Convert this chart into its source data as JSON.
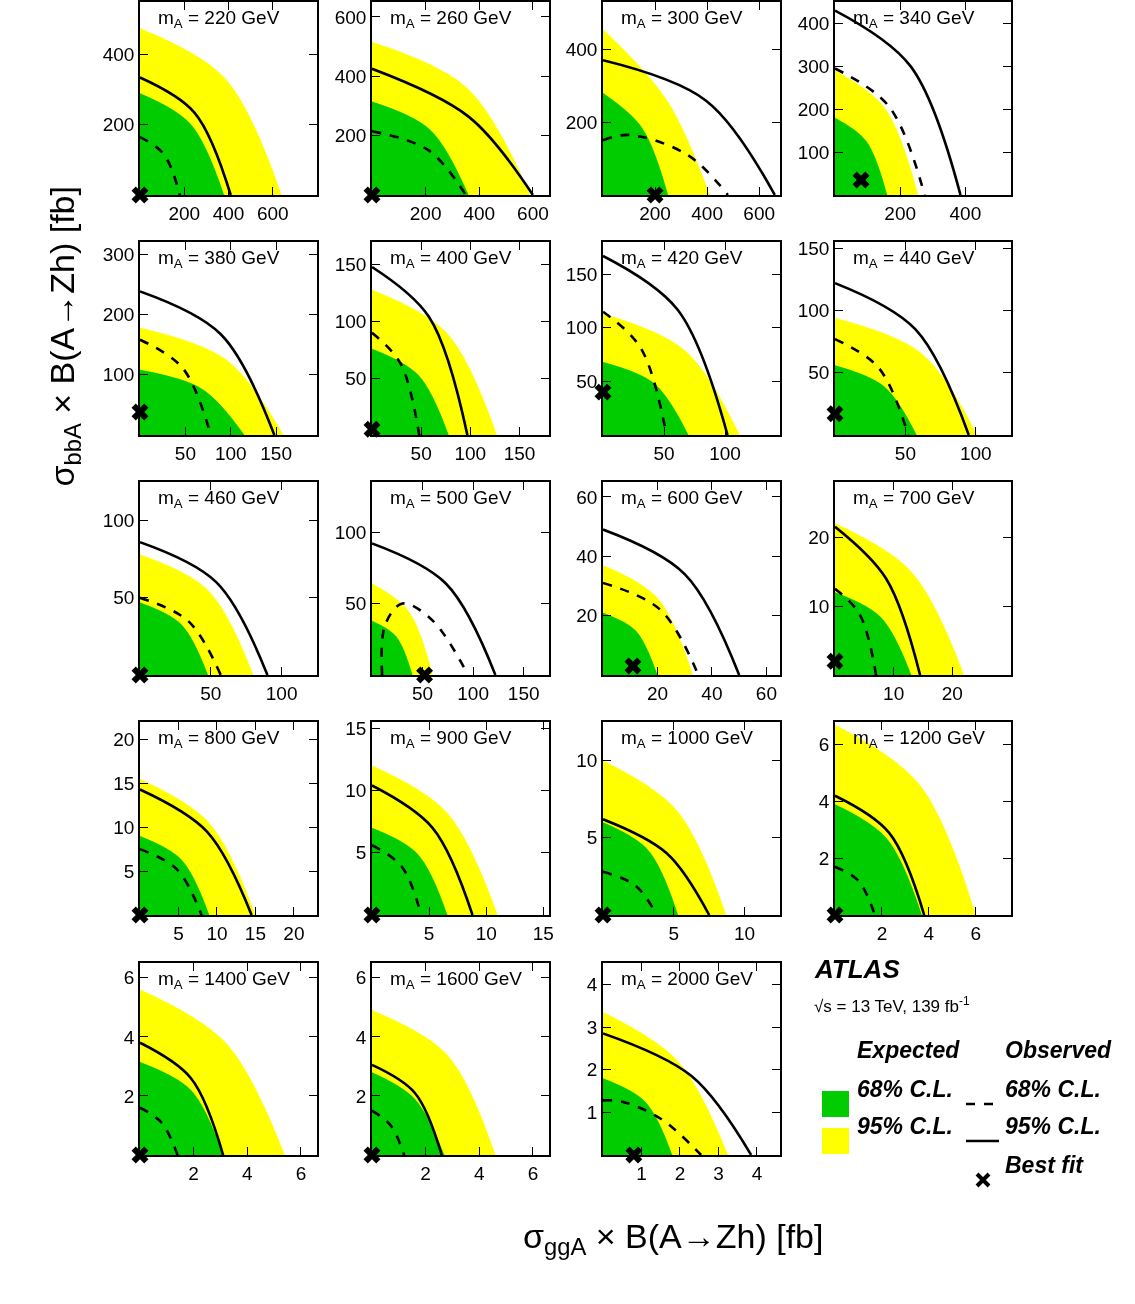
{
  "chart_data": [
    {
      "type": "area",
      "title": "m$_{A}$ = 220 GeV",
      "ylabel": "σ$_{bbA}$ × B(A→Zh) [fb]",
      "xlim": [
        0,
        800
      ],
      "ylim": [
        0,
        550
      ],
      "xticks": [
        200,
        400,
        600
      ],
      "yticks": [
        200,
        400
      ],
      "series": [
        {
          "type": "area",
          "color": "#ffff00",
          "x": [
            0,
            384,
            640
          ],
          "values": [
            475,
            333,
            0
          ]
        },
        {
          "type": "area",
          "color": "#00cc00",
          "x": [
            0,
            228,
            380
          ],
          "values": [
            290,
            203,
            0
          ]
        },
        {
          "type": "line",
          "line_style": "dashed",
          "color": "#000000",
          "x": [
            0,
            108,
            180
          ],
          "values": [
            165,
            116,
            0
          ]
        },
        {
          "type": "line",
          "line_style": "solid",
          "color": "#000000",
          "x": [
            0,
            246,
            410
          ],
          "values": [
            335,
            235,
            0
          ]
        },
        {
          "type": "scatter",
          "marker": "cross",
          "color": "#000000",
          "x": [
            0
          ],
          "values": [
            0
          ]
        }
      ]
    },
    {
      "type": "area",
      "title": "m$_{A}$ = 260 GeV",
      "xlim": [
        0,
        660
      ],
      "ylim": [
        0,
        650
      ],
      "xticks": [
        200,
        400,
        600
      ],
      "yticks": [
        200,
        400,
        600
      ],
      "series": [
        {
          "type": "area",
          "color": "#ffff00",
          "x": [
            0,
            354,
            590
          ],
          "values": [
            515,
            361,
            0
          ]
        },
        {
          "type": "area",
          "color": "#00cc00",
          "x": [
            0,
            216,
            360
          ],
          "values": [
            315,
            221,
            0
          ]
        },
        {
          "type": "line",
          "line_style": "dashed",
          "color": "#000000",
          "x": [
            0,
            210,
            350
          ],
          "values": [
            215,
            151,
            0
          ]
        },
        {
          "type": "line",
          "line_style": "solid",
          "color": "#000000",
          "x": [
            0,
            360,
            600
          ],
          "values": [
            425,
            264,
            0
          ]
        },
        {
          "type": "scatter",
          "marker": "cross",
          "color": "#000000",
          "x": [
            0
          ],
          "values": [
            0
          ]
        }
      ]
    },
    {
      "type": "area",
      "title": "m$_{A}$ = 300 GeV",
      "xlim": [
        0,
        680
      ],
      "ylim": [
        0,
        530
      ],
      "xticks": [
        200,
        400,
        600
      ],
      "yticks": [
        200,
        400
      ],
      "series": [
        {
          "type": "area",
          "color": "#ffff00",
          "x": [
            0,
            246,
            410
          ],
          "values": [
            455,
            260,
            0
          ]
        },
        {
          "type": "area",
          "color": "#00cc00",
          "x": [
            0,
            150,
            250
          ],
          "values": [
            280,
            185,
            0
          ]
        },
        {
          "type": "line",
          "line_style": "dashed",
          "color": "#000000",
          "x": [
            0,
            100,
            325,
            480
          ],
          "values": [
            150,
            165,
            110,
            0
          ]
        },
        {
          "type": "line",
          "line_style": "solid",
          "color": "#000000",
          "x": [
            0,
            396,
            660
          ],
          "values": [
            370,
            259,
            0
          ]
        },
        {
          "type": "scatter",
          "marker": "cross",
          "color": "#000000",
          "x": [
            200
          ],
          "values": [
            0
          ]
        }
      ]
    },
    {
      "type": "area",
      "title": "m$_{A}$ = 340 GeV",
      "xlim": [
        0,
        540
      ],
      "ylim": [
        0,
        450
      ],
      "xticks": [
        200,
        400
      ],
      "yticks": [
        100,
        200,
        300,
        400
      ],
      "series": [
        {
          "type": "area",
          "color": "#ffff00",
          "x": [
            0,
            153,
            255
          ],
          "values": [
            290,
            203,
            0
          ]
        },
        {
          "type": "area",
          "color": "#00cc00",
          "x": [
            0,
            96,
            160
          ],
          "values": [
            180,
            126,
            0
          ]
        },
        {
          "type": "line",
          "line_style": "dashed",
          "color": "#000000",
          "x": [
            0,
            165,
            275
          ],
          "values": [
            295,
            207,
            0
          ]
        },
        {
          "type": "line",
          "line_style": "solid",
          "color": "#000000",
          "x": [
            0,
            231,
            385
          ],
          "values": [
            430,
            301,
            0
          ]
        },
        {
          "type": "scatter",
          "marker": "cross",
          "color": "#000000",
          "x": [
            80
          ],
          "values": [
            35
          ]
        }
      ]
    },
    {
      "type": "area",
      "title": "m$_{A}$ = 380 GeV",
      "xlim": [
        0,
        195
      ],
      "ylim": [
        0,
        320
      ],
      "xticks": [
        50,
        100,
        150
      ],
      "yticks": [
        100,
        200,
        300
      ],
      "series": [
        {
          "type": "area",
          "color": "#ffff00",
          "x": [
            0,
            95,
            158
          ],
          "values": [
            178,
            125,
            0
          ]
        },
        {
          "type": "area",
          "color": "#00cc00",
          "x": [
            0,
            69,
            115
          ],
          "values": [
            108,
            76,
            0
          ]
        },
        {
          "type": "line",
          "line_style": "dashed",
          "color": "#000000",
          "x": [
            0,
            47,
            78
          ],
          "values": [
            158,
            111,
            0
          ]
        },
        {
          "type": "line",
          "line_style": "solid",
          "color": "#000000",
          "x": [
            0,
            89,
            148
          ],
          "values": [
            238,
            167,
            0
          ]
        },
        {
          "type": "scatter",
          "marker": "cross",
          "color": "#000000",
          "x": [
            0
          ],
          "values": [
            38
          ]
        }
      ]
    },
    {
      "type": "area",
      "title": "m$_{A}$ = 400 GeV",
      "xlim": [
        0,
        180
      ],
      "ylim": [
        0,
        170
      ],
      "xticks": [
        50,
        100,
        150
      ],
      "yticks": [
        50,
        100,
        150
      ],
      "series": [
        {
          "type": "area",
          "color": "#ffff00",
          "x": [
            0,
            76,
            127
          ],
          "values": [
            128,
            90,
            0
          ]
        },
        {
          "type": "area",
          "color": "#00cc00",
          "x": [
            0,
            47,
            78
          ],
          "values": [
            76,
            53,
            0
          ]
        },
        {
          "type": "line",
          "line_style": "dashed",
          "color": "#000000",
          "x": [
            0,
            29,
            48
          ],
          "values": [
            90,
            63,
            0
          ]
        },
        {
          "type": "line",
          "line_style": "solid",
          "color": "#000000",
          "x": [
            0,
            58,
            97
          ],
          "values": [
            148,
            104,
            0
          ]
        },
        {
          "type": "scatter",
          "marker": "cross",
          "color": "#000000",
          "x": [
            0
          ],
          "values": [
            5
          ]
        }
      ]
    },
    {
      "type": "area",
      "title": "m$_{A}$ = 420 GeV",
      "xlim": [
        0,
        145
      ],
      "ylim": [
        0,
        180
      ],
      "xticks": [
        50,
        100
      ],
      "yticks": [
        50,
        100,
        150
      ],
      "series": [
        {
          "type": "area",
          "color": "#ffff00",
          "x": [
            0,
            67,
            112
          ],
          "values": [
            113,
            79,
            0
          ]
        },
        {
          "type": "area",
          "color": "#00cc00",
          "x": [
            0,
            42,
            70
          ],
          "values": [
            68,
            48,
            0
          ]
        },
        {
          "type": "line",
          "line_style": "dashed",
          "color": "#000000",
          "x": [
            0,
            31,
            52
          ],
          "values": [
            115,
            81,
            0
          ]
        },
        {
          "type": "line",
          "line_style": "solid",
          "color": "#000000",
          "x": [
            0,
            61,
            102
          ],
          "values": [
            167,
            117,
            0
          ]
        },
        {
          "type": "scatter",
          "marker": "cross",
          "color": "#000000",
          "x": [
            0
          ],
          "values": [
            40
          ]
        }
      ]
    },
    {
      "type": "area",
      "title": "m$_{A}$ = 440 GeV",
      "xlim": [
        0,
        125
      ],
      "ylim": [
        0,
        155
      ],
      "xticks": [
        50,
        100
      ],
      "yticks": [
        50,
        100,
        150
      ],
      "series": [
        {
          "type": "area",
          "color": "#ffff00",
          "x": [
            0,
            61,
            101
          ],
          "values": [
            94,
            66,
            0
          ]
        },
        {
          "type": "area",
          "color": "#00cc00",
          "x": [
            0,
            35,
            58
          ],
          "values": [
            56,
            39,
            0
          ]
        },
        {
          "type": "line",
          "line_style": "dashed",
          "color": "#000000",
          "x": [
            0,
            31,
            52
          ],
          "values": [
            77,
            54,
            0
          ]
        },
        {
          "type": "line",
          "line_style": "solid",
          "color": "#000000",
          "x": [
            0,
            57,
            95
          ],
          "values": [
            122,
            85,
            0
          ]
        },
        {
          "type": "scatter",
          "marker": "cross",
          "color": "#000000",
          "x": [
            0
          ],
          "values": [
            17
          ]
        }
      ]
    },
    {
      "type": "area",
      "title": "m$_{A}$ = 460 GeV",
      "xlim": [
        0,
        125
      ],
      "ylim": [
        0,
        125
      ],
      "xticks": [
        50,
        100
      ],
      "yticks": [
        50,
        100
      ],
      "series": [
        {
          "type": "area",
          "color": "#ffff00",
          "x": [
            0,
            48,
            80
          ],
          "values": [
            78,
            55,
            0
          ]
        },
        {
          "type": "area",
          "color": "#00cc00",
          "x": [
            0,
            29,
            48
          ],
          "values": [
            47,
            33,
            0
          ]
        },
        {
          "type": "line",
          "line_style": "dashed",
          "color": "#000000",
          "x": [
            0,
            34,
            57
          ],
          "values": [
            50,
            35,
            0
          ]
        },
        {
          "type": "line",
          "line_style": "solid",
          "color": "#000000",
          "x": [
            0,
            54,
            90
          ],
          "values": [
            86,
            60,
            0
          ]
        },
        {
          "type": "scatter",
          "marker": "cross",
          "color": "#000000",
          "x": [
            0
          ],
          "values": [
            0
          ]
        }
      ]
    },
    {
      "type": "area",
      "title": "m$_{A}$ = 500 GeV",
      "xlim": [
        0,
        175
      ],
      "ylim": [
        0,
        135
      ],
      "xticks": [
        50,
        100,
        150
      ],
      "yticks": [
        50,
        100
      ],
      "series": [
        {
          "type": "area",
          "color": "#ffff00",
          "x": [
            0,
            36,
            60
          ],
          "values": [
            64,
            45,
            0
          ]
        },
        {
          "type": "area",
          "color": "#00cc00",
          "x": [
            0,
            24,
            40
          ],
          "values": [
            38,
            27,
            0
          ]
        },
        {
          "type": "line",
          "line_style": "dashed",
          "color": "#000000",
          "x": [
            10,
            13,
            30,
            60,
            95
          ],
          "values": [
            0,
            35,
            50,
            38,
            0
          ]
        },
        {
          "type": "line",
          "line_style": "solid",
          "color": "#000000",
          "x": [
            0,
            73,
            122
          ],
          "values": [
            92,
            64,
            0
          ]
        },
        {
          "type": "scatter",
          "marker": "cross",
          "color": "#000000",
          "x": [
            52
          ],
          "values": [
            0
          ]
        }
      ]
    },
    {
      "type": "area",
      "title": "m$_{A}$ = 600 GeV",
      "xlim": [
        0,
        65
      ],
      "ylim": [
        0,
        65
      ],
      "xticks": [
        20,
        40,
        60
      ],
      "yticks": [
        20,
        40,
        60
      ],
      "series": [
        {
          "type": "area",
          "color": "#ffff00",
          "x": [
            0,
            20,
            33
          ],
          "values": [
            37,
            26,
            0
          ]
        },
        {
          "type": "area",
          "color": "#00cc00",
          "x": [
            0,
            12,
            20
          ],
          "values": [
            21,
            15,
            0
          ]
        },
        {
          "type": "line",
          "line_style": "dashed",
          "color": "#000000",
          "x": [
            0,
            21,
            35
          ],
          "values": [
            31,
            22,
            0
          ]
        },
        {
          "type": "line",
          "line_style": "solid",
          "color": "#000000",
          "x": [
            0,
            30,
            50
          ],
          "values": [
            49,
            34,
            0
          ]
        },
        {
          "type": "scatter",
          "marker": "cross",
          "color": "#000000",
          "x": [
            11
          ],
          "values": [
            3
          ]
        }
      ]
    },
    {
      "type": "area",
      "title": "m$_{A}$ = 700 GeV",
      "xlim": [
        0,
        30
      ],
      "ylim": [
        0,
        28
      ],
      "xticks": [
        10,
        20
      ],
      "yticks": [
        10,
        20
      ],
      "series": [
        {
          "type": "area",
          "color": "#ffff00",
          "x": [
            0,
            13,
            22
          ],
          "values": [
            22,
            15,
            0
          ]
        },
        {
          "type": "area",
          "color": "#00cc00",
          "x": [
            0,
            7.8,
            13
          ],
          "values": [
            12,
            8.4,
            0
          ]
        },
        {
          "type": "line",
          "line_style": "dashed",
          "color": "#000000",
          "x": [
            0,
            4.2,
            7
          ],
          "values": [
            12.5,
            8.8,
            0
          ]
        },
        {
          "type": "line",
          "line_style": "solid",
          "color": "#000000",
          "x": [
            0,
            8.7,
            14.5
          ],
          "values": [
            21.5,
            14,
            0
          ]
        },
        {
          "type": "scatter",
          "marker": "cross",
          "color": "#000000",
          "x": [
            0
          ],
          "values": [
            2
          ]
        }
      ]
    },
    {
      "type": "area",
      "title": "m$_{A}$ = 800 GeV",
      "xlim": [
        0,
        23
      ],
      "ylim": [
        0,
        22
      ],
      "xticks": [
        5,
        10,
        15,
        20
      ],
      "yticks": [
        5,
        10,
        15,
        20
      ],
      "series": [
        {
          "type": "area",
          "color": "#ffff00",
          "x": [
            0,
            9,
            15
          ],
          "values": [
            15.5,
            10.5,
            0
          ]
        },
        {
          "type": "area",
          "color": "#00cc00",
          "x": [
            0,
            5.4,
            9
          ],
          "values": [
            9,
            6.3,
            0
          ]
        },
        {
          "type": "line",
          "line_style": "dashed",
          "color": "#000000",
          "x": [
            0,
            4.8,
            8
          ],
          "values": [
            7.5,
            5.2,
            0
          ]
        },
        {
          "type": "line",
          "line_style": "solid",
          "color": "#000000",
          "x": [
            0,
            8.7,
            14.5
          ],
          "values": [
            14.3,
            9.5,
            0
          ]
        },
        {
          "type": "scatter",
          "marker": "cross",
          "color": "#000000",
          "x": [
            0
          ],
          "values": [
            0
          ]
        }
      ]
    },
    {
      "type": "area",
      "title": "m$_{A}$ = 900 GeV",
      "xlim": [
        0,
        15.5
      ],
      "ylim": [
        0,
        15.5
      ],
      "xticks": [
        5,
        10,
        15
      ],
      "yticks": [
        5,
        10,
        15
      ],
      "series": [
        {
          "type": "area",
          "color": "#ffff00",
          "x": [
            0,
            6.6,
            11
          ],
          "values": [
            12,
            8.2,
            0
          ]
        },
        {
          "type": "area",
          "color": "#00cc00",
          "x": [
            0,
            4,
            6.6
          ],
          "values": [
            7,
            4.9,
            0
          ]
        },
        {
          "type": "line",
          "line_style": "dashed",
          "color": "#000000",
          "x": [
            0,
            2.6,
            4.3
          ],
          "values": [
            5.6,
            3.9,
            0
          ]
        },
        {
          "type": "line",
          "line_style": "solid",
          "color": "#000000",
          "x": [
            0,
            5.3,
            8.8
          ],
          "values": [
            10.4,
            7,
            0
          ]
        },
        {
          "type": "scatter",
          "marker": "cross",
          "color": "#000000",
          "x": [
            0
          ],
          "values": [
            0
          ]
        }
      ]
    },
    {
      "type": "area",
      "title": "m$_{A}$ = 1000 GeV",
      "xlim": [
        0,
        12.5
      ],
      "ylim": [
        0,
        12.5
      ],
      "xticks": [
        5,
        10
      ],
      "yticks": [
        5,
        10
      ],
      "series": [
        {
          "type": "area",
          "color": "#ffff00",
          "x": [
            0,
            5.2,
            8.7
          ],
          "values": [
            10,
            6.8,
            0
          ]
        },
        {
          "type": "area",
          "color": "#00cc00",
          "x": [
            0,
            3.2,
            5.3
          ],
          "values": [
            6,
            4.2,
            0
          ]
        },
        {
          "type": "line",
          "line_style": "dashed",
          "color": "#000000",
          "x": [
            0,
            2.3,
            3.8
          ],
          "values": [
            2.8,
            1.9,
            0
          ]
        },
        {
          "type": "line",
          "line_style": "solid",
          "color": "#000000",
          "x": [
            0,
            4.5,
            7.5
          ],
          "values": [
            6.2,
            4,
            0
          ]
        },
        {
          "type": "scatter",
          "marker": "cross",
          "color": "#000000",
          "x": [
            0
          ],
          "values": [
            0
          ]
        }
      ]
    },
    {
      "type": "area",
      "title": "m$_{A}$ = 1200 GeV",
      "xlim": [
        0,
        7.5
      ],
      "ylim": [
        0,
        6.8
      ],
      "xticks": [
        2,
        4,
        6
      ],
      "yticks": [
        2,
        4,
        6
      ],
      "series": [
        {
          "type": "area",
          "color": "#ffff00",
          "x": [
            0,
            3.6,
            6
          ],
          "values": [
            6.7,
            4.6,
            0
          ]
        },
        {
          "type": "area",
          "color": "#00cc00",
          "x": [
            0,
            2.2,
            3.7
          ],
          "values": [
            3.9,
            2.7,
            0
          ]
        },
        {
          "type": "line",
          "line_style": "dashed",
          "color": "#000000",
          "x": [
            0,
            1,
            1.7
          ],
          "values": [
            1.7,
            1.2,
            0
          ]
        },
        {
          "type": "line",
          "line_style": "solid",
          "color": "#000000",
          "x": [
            0,
            2.3,
            3.8
          ],
          "values": [
            4.2,
            2.9,
            0
          ]
        },
        {
          "type": "scatter",
          "marker": "cross",
          "color": "#000000",
          "x": [
            0
          ],
          "values": [
            0
          ]
        }
      ]
    },
    {
      "type": "area",
      "title": "m$_{A}$ = 1400 GeV",
      "xlim": [
        0,
        6.6
      ],
      "ylim": [
        0,
        6.5
      ],
      "xticks": [
        2,
        4,
        6
      ],
      "yticks": [
        2,
        4,
        6
      ],
      "series": [
        {
          "type": "area",
          "color": "#ffff00",
          "x": [
            0,
            3.2,
            5.4
          ],
          "values": [
            5.6,
            3.8,
            0
          ]
        },
        {
          "type": "area",
          "color": "#00cc00",
          "x": [
            0,
            1.9,
            3.1
          ],
          "values": [
            3.15,
            2.2,
            0
          ]
        },
        {
          "type": "line",
          "line_style": "dashed",
          "color": "#000000",
          "x": [
            0,
            0.8,
            1.4
          ],
          "values": [
            1.6,
            1.1,
            0
          ]
        },
        {
          "type": "line",
          "line_style": "solid",
          "color": "#000000",
          "x": [
            0,
            1.9,
            3.1
          ],
          "values": [
            3.8,
            2.6,
            0
          ]
        },
        {
          "type": "scatter",
          "marker": "cross",
          "color": "#000000",
          "x": [
            0
          ],
          "values": [
            0
          ]
        }
      ]
    },
    {
      "type": "area",
      "title": "m$_{A}$ = 1600 GeV",
      "xlim": [
        0,
        6.6
      ],
      "ylim": [
        0,
        6.5
      ],
      "xticks": [
        2,
        4,
        6
      ],
      "yticks": [
        2,
        4,
        6
      ],
      "series": [
        {
          "type": "area",
          "color": "#ffff00",
          "x": [
            0,
            2.8,
            4.6
          ],
          "values": [
            4.9,
            3.4,
            0
          ]
        },
        {
          "type": "area",
          "color": "#00cc00",
          "x": [
            0,
            1.6,
            2.7
          ],
          "values": [
            2.8,
            1.9,
            0
          ]
        },
        {
          "type": "line",
          "line_style": "dashed",
          "color": "#000000",
          "x": [
            0,
            0.7,
            1.2
          ],
          "values": [
            1.5,
            1,
            0
          ]
        },
        {
          "type": "line",
          "line_style": "solid",
          "color": "#000000",
          "x": [
            0,
            1.6,
            2.6
          ],
          "values": [
            3.05,
            2.1,
            0
          ]
        },
        {
          "type": "scatter",
          "marker": "cross",
          "color": "#000000",
          "x": [
            0
          ],
          "values": [
            0
          ]
        }
      ]
    },
    {
      "type": "area",
      "title": "m$_{A}$ = 2000 GeV",
      "xlabel": "σ$_{ggA}$ × B(A→Zh) [fb]",
      "xlim": [
        0,
        4.6
      ],
      "ylim": [
        0,
        4.5
      ],
      "xticks": [
        1,
        2,
        3,
        4
      ],
      "yticks": [
        1,
        2,
        3,
        4
      ],
      "series": [
        {
          "type": "area",
          "color": "#ffff00",
          "x": [
            0,
            1.95,
            3.25
          ],
          "values": [
            3.35,
            2.2,
            0
          ]
        },
        {
          "type": "area",
          "color": "#00cc00",
          "x": [
            0,
            1.1,
            1.8
          ],
          "values": [
            1.8,
            1.25,
            0
          ]
        },
        {
          "type": "line",
          "line_style": "dashed",
          "color": "#000000",
          "x": [
            0,
            0.5,
            1.5,
            2.55
          ],
          "values": [
            1.28,
            1.25,
            0.85,
            0
          ]
        },
        {
          "type": "line",
          "line_style": "solid",
          "color": "#000000",
          "x": [
            0,
            2.3,
            3.85
          ],
          "values": [
            2.85,
            1.85,
            0
          ]
        },
        {
          "type": "scatter",
          "marker": "cross",
          "color": "#000000",
          "x": [
            0.8
          ],
          "values": [
            0
          ]
        }
      ]
    },
    {
      "type": "other",
      "title": "ATLAS",
      "subtitle": "√s = 13 TeV, 139 fb$^{-1}$",
      "annotations": [
        "Expected",
        "Observed",
        "68% C.L.",
        "95% C.L.",
        "68% C.L.",
        "95% C.L.",
        "Best fit"
      ]
    }
  ]
}
